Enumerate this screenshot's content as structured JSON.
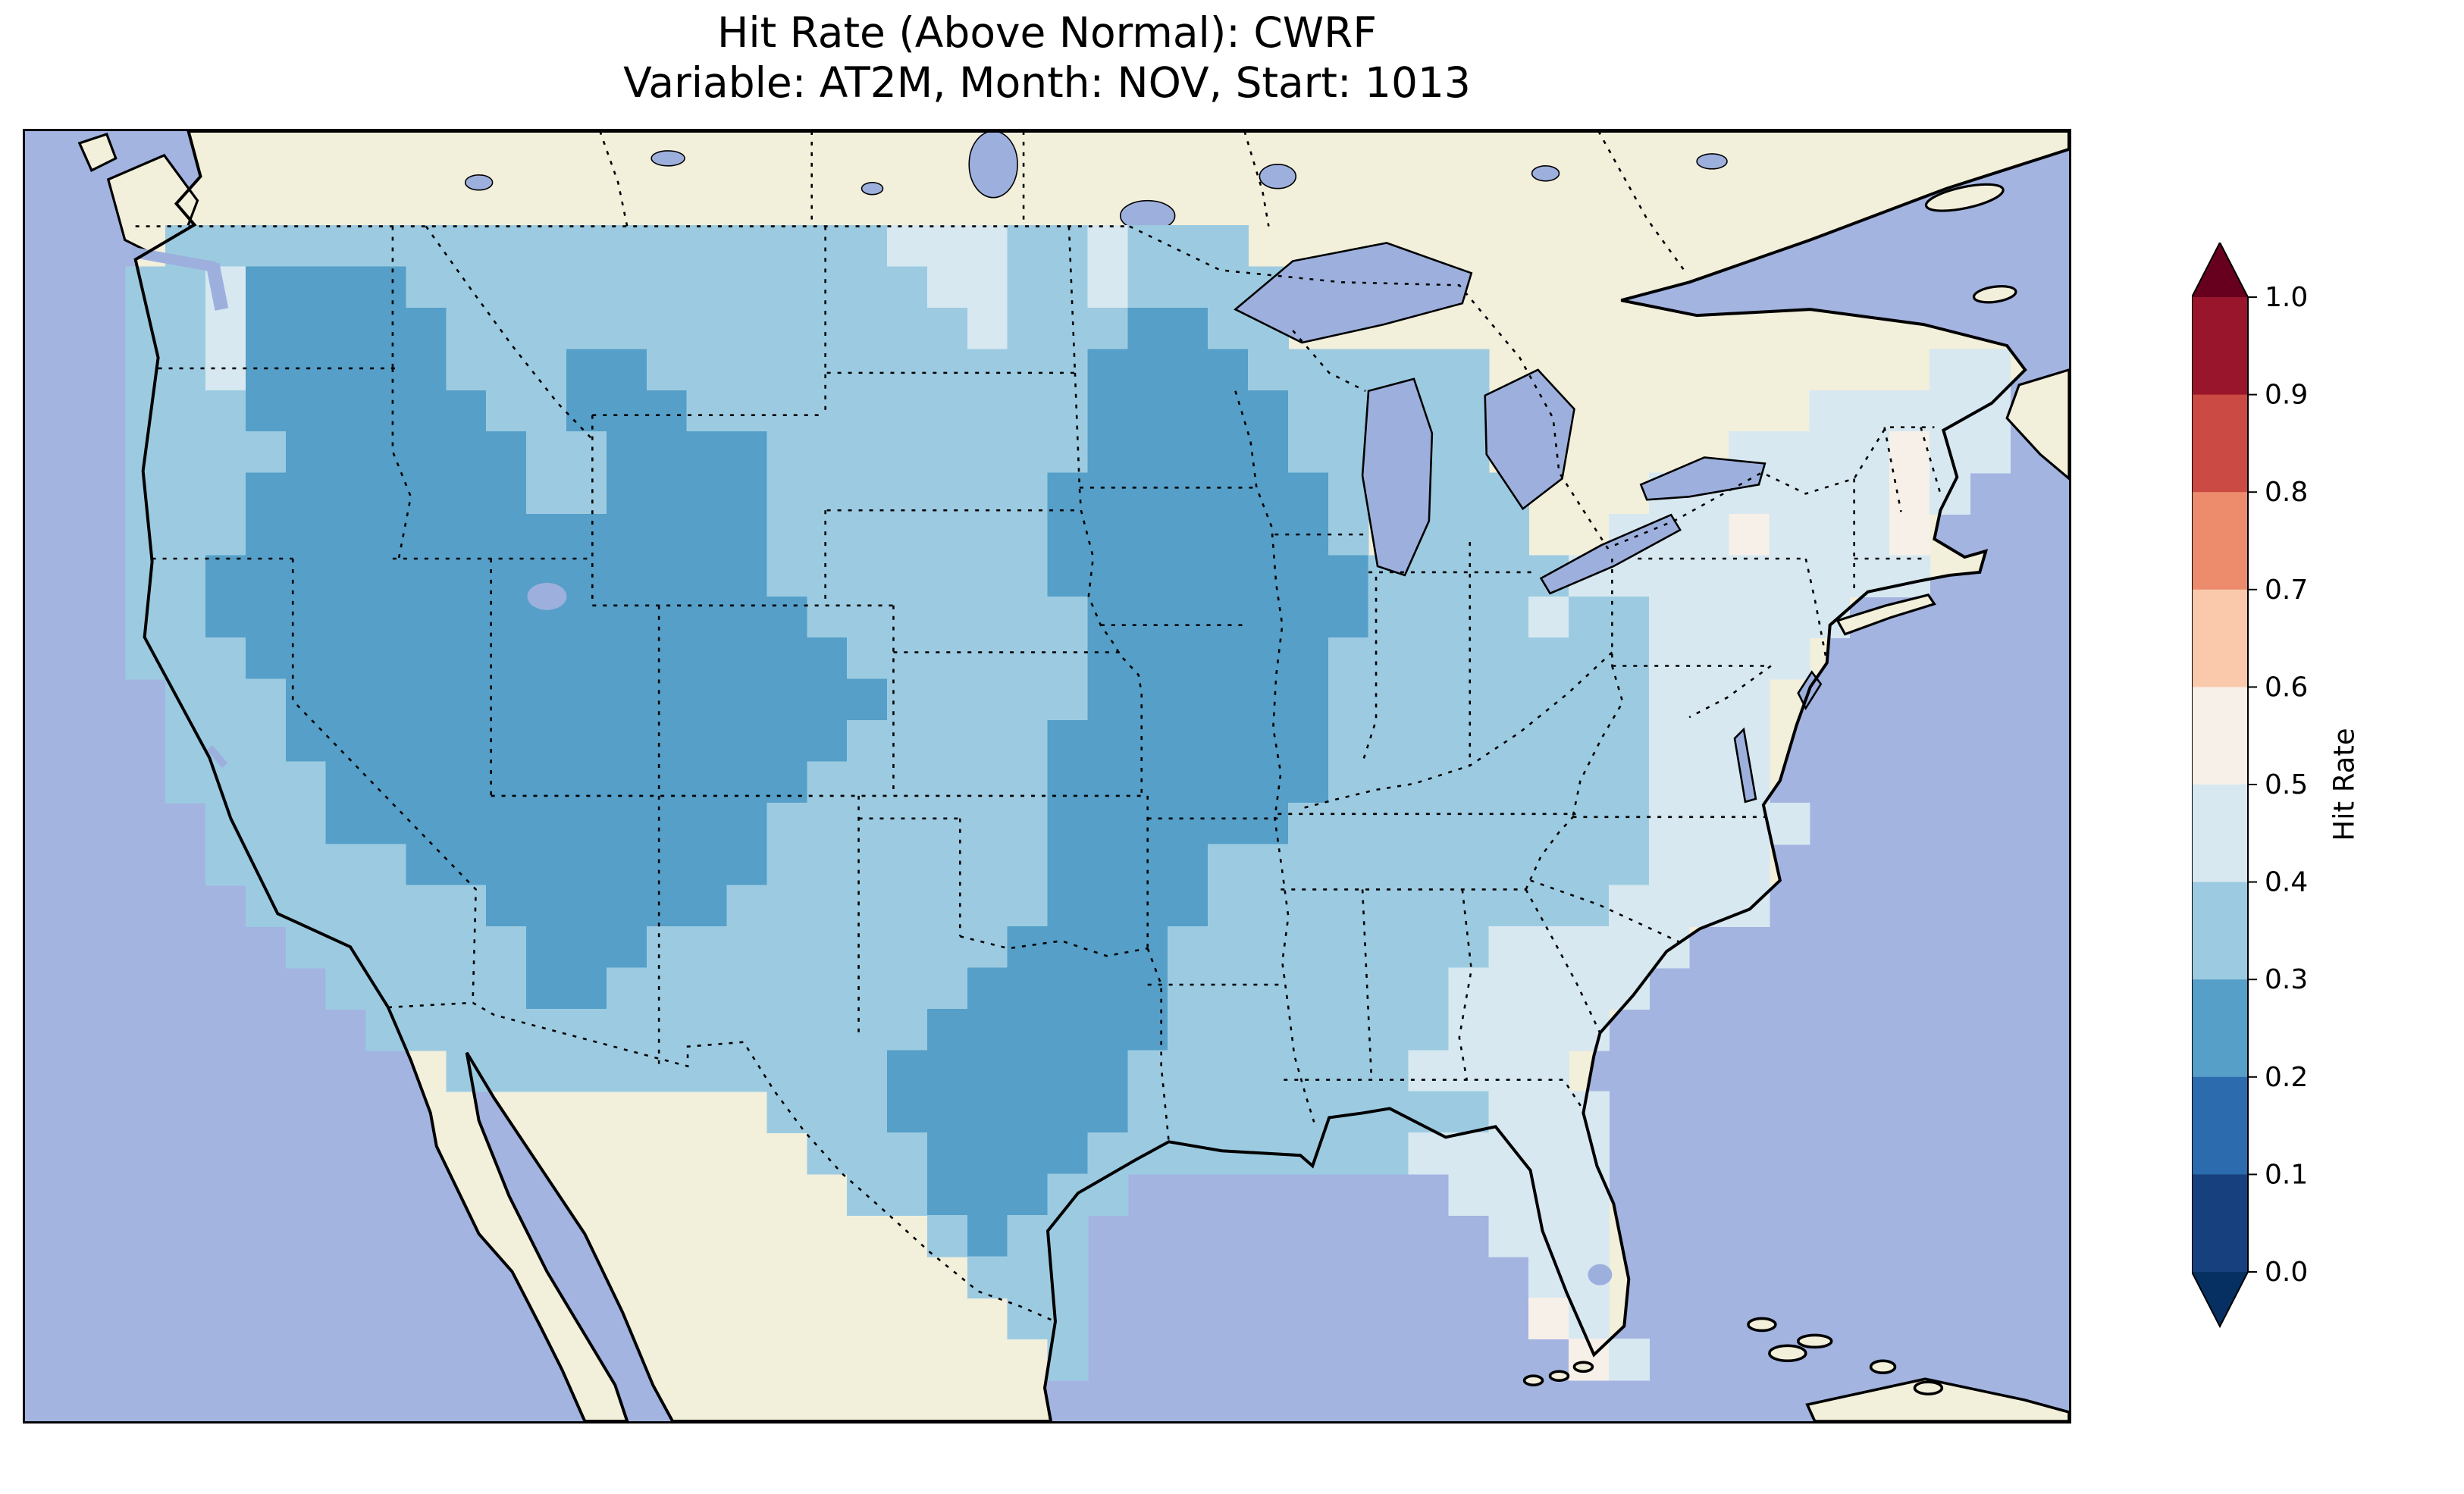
{
  "title": {
    "line1": "Hit Rate (Above Normal): CWRF",
    "line2": "Variable: AT2M, Month: NOV, Start: 1013"
  },
  "colorbar": {
    "label": "Hit Rate",
    "tick_labels": [
      "1.0",
      "0.9",
      "0.8",
      "0.7",
      "0.6",
      "0.5",
      "0.4",
      "0.3",
      "0.2",
      "0.1",
      "0.0"
    ],
    "bin_colors_low_to_high": [
      "#16417e",
      "#2c6cae",
      "#559fc8",
      "#9ccbe1",
      "#d7e8f1",
      "#f7f0e8",
      "#fac9ab",
      "#ec8c6c",
      "#cc4a44",
      "#98152b"
    ],
    "under_arrow_color": "#053061",
    "over_arrow_color": "#67001f"
  },
  "map_colors": {
    "ocean": "#a3b4e1",
    "land": "#f2efdb",
    "lakes": "#9db0dd",
    "coastline": "#000000",
    "borders": "#000000"
  },
  "chart_data": {
    "type": "heatmap",
    "title": "Hit Rate (Above Normal): CWRF",
    "subtitle": "Variable: AT2M, Month: NOV, Start: 1013",
    "model": "CWRF",
    "variable": "AT2M",
    "month": "NOV",
    "start": "1013",
    "colorbar_label": "Hit Rate",
    "colorbar_ticks": [
      0.0,
      0.1,
      0.2,
      0.3,
      0.4,
      0.5,
      0.6,
      0.7,
      0.8,
      0.9,
      1.0
    ],
    "value_range_shown_on_map": [
      0.2,
      0.6
    ],
    "legend_position": "right",
    "bin_key": {
      "2": "hit rate 0.2-0.3",
      "3": "hit rate 0.3-0.4",
      "4": "hit rate 0.4-0.5",
      "5": "hit rate 0.5-0.6",
      ".": "outside CONUS (no data)"
    },
    "grid_note": "Approximate raster of the mapped field over the continental US; rows run north to south, columns west to east; each character is one cell colored by the hit-rate bin in bin_key.",
    "grid_rows": [
      "..................................................",
      ".333333333333333333444334333......................",
      "33422223333333333333443343333.....................",
      "33422222333333333333343332233.....................",
      "3342222233322333333333332222333333...........44...",
      "3332222223322233333333332222233333........44444...",
      "3333222222332222333333332222233.33......4444544...",
      "3332222222332222333333322222223.333...44444454....",
      "3332222222222222333333322222223.333..44454445.....",
      "332222222222222233333332222222233333444444444.....",
      "3322222222222222233333332222222333343344444.......",
      "333222222222222222333333222222333333334444........",
      ".3332222222222222223333322222233333333444.........",
      ".3332222222222222233333222222233333333444.........",
      ".3333222222222222333333222222233333333444.........",
      "..3332222222222233333332222223333333334444........",
      "..333332222222223333333222233333333333444.........",
      "...33333322222233333333222233333333334444.........",
      "....33333322233333333322223333333344444...........",
      ".....333332233333333322222333333344444............",
      "......3333333333333322222233333334444.............",
      "........3333333333322222233333334444..............",
      "................333222222333333333444.............",
      ".................33322223333333344444.............",
      "..................3322233........4444.............",
      "....................3233..........444.............",
      ".....................333...........44.............",
      "......................33...........54.............",
      ".......................3............54............",
      ".................................................."
    ],
    "region_summary": "Mapped hit rates lie between 0.2 and 0.6. Lowest values (0.2-0.3, medium blue) cover the Interior West (eastern WA, OR interior, NV, UT, ID, WY, CO, northern AZ/NM) and a second large area over the Upper Midwest (MN, WI, IA) extending south through MO, eastern KS/OK and central-east Texas. Values 0.3-0.4 (light blue) cover the Pacific coast, northern Plains, Gulf South, Tennessee/Ohio Valleys. Values 0.4-0.5 (pale blue) appear over the Northeast, Mid-Atlantic coast, Georgia/South Carolina and Florida, with scattered 0.5-0.6 (near-white) cells in New England, upstate NY, coastal Carolinas and south Florida. No cells reach the red (>0.6) part of the scale."
  }
}
